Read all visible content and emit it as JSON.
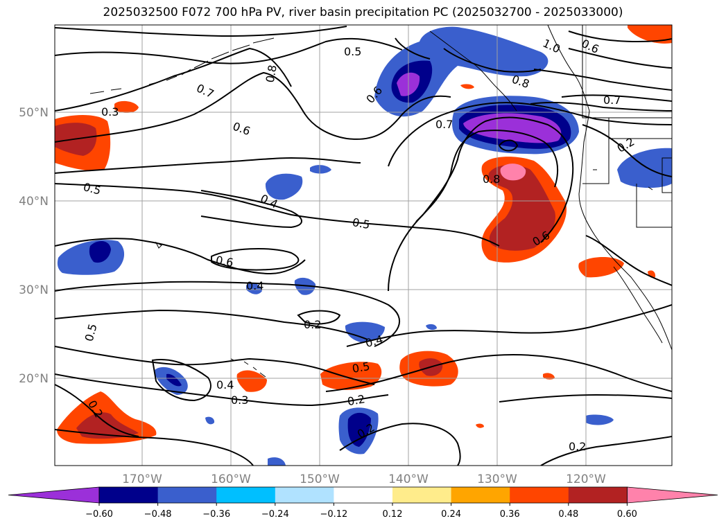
{
  "title": "2025032500 F072 700 hPa PV, river basin precipitation PC (2025032700 - 2025033000)",
  "map": {
    "lon_labels": [
      "170°W",
      "160°W",
      "150°W",
      "140°W",
      "130°W",
      "120°W"
    ],
    "lat_labels": [
      "50°N",
      "40°N",
      "30°N",
      "20°N"
    ],
    "gridlines": true,
    "contour_labels": [
      "0.5",
      "0.8",
      "1.0",
      "0.6",
      "0.3",
      "0.7",
      "0.6",
      "0.6",
      "0.7",
      "0.8",
      "0.7",
      "0.2",
      "0.5",
      "0.4",
      "0.8",
      "0.5",
      "0.6",
      "0.6",
      "0.4",
      "0.2",
      "0.4",
      "0.5",
      "0.5",
      "0.4",
      "0.3",
      "0.2",
      "0.2",
      "0.2",
      "0.2"
    ]
  },
  "colorbar": {
    "ticks": [
      "−0.60",
      "−0.48",
      "−0.36",
      "−0.24",
      "−0.12",
      "0.12",
      "0.24",
      "0.36",
      "0.48",
      "0.60"
    ],
    "colors": [
      "#9b30d9",
      "#00008b",
      "#3a5fcd",
      "#00bfff",
      "#b0e2ff",
      "#ffffff",
      "#ffec8b",
      "#ffa500",
      "#ff4500",
      "#b22222",
      "#ff82ab"
    ]
  },
  "colors": {
    "contour": "#000000",
    "grid": "#a0a0a0",
    "tick_label": "#808080"
  }
}
